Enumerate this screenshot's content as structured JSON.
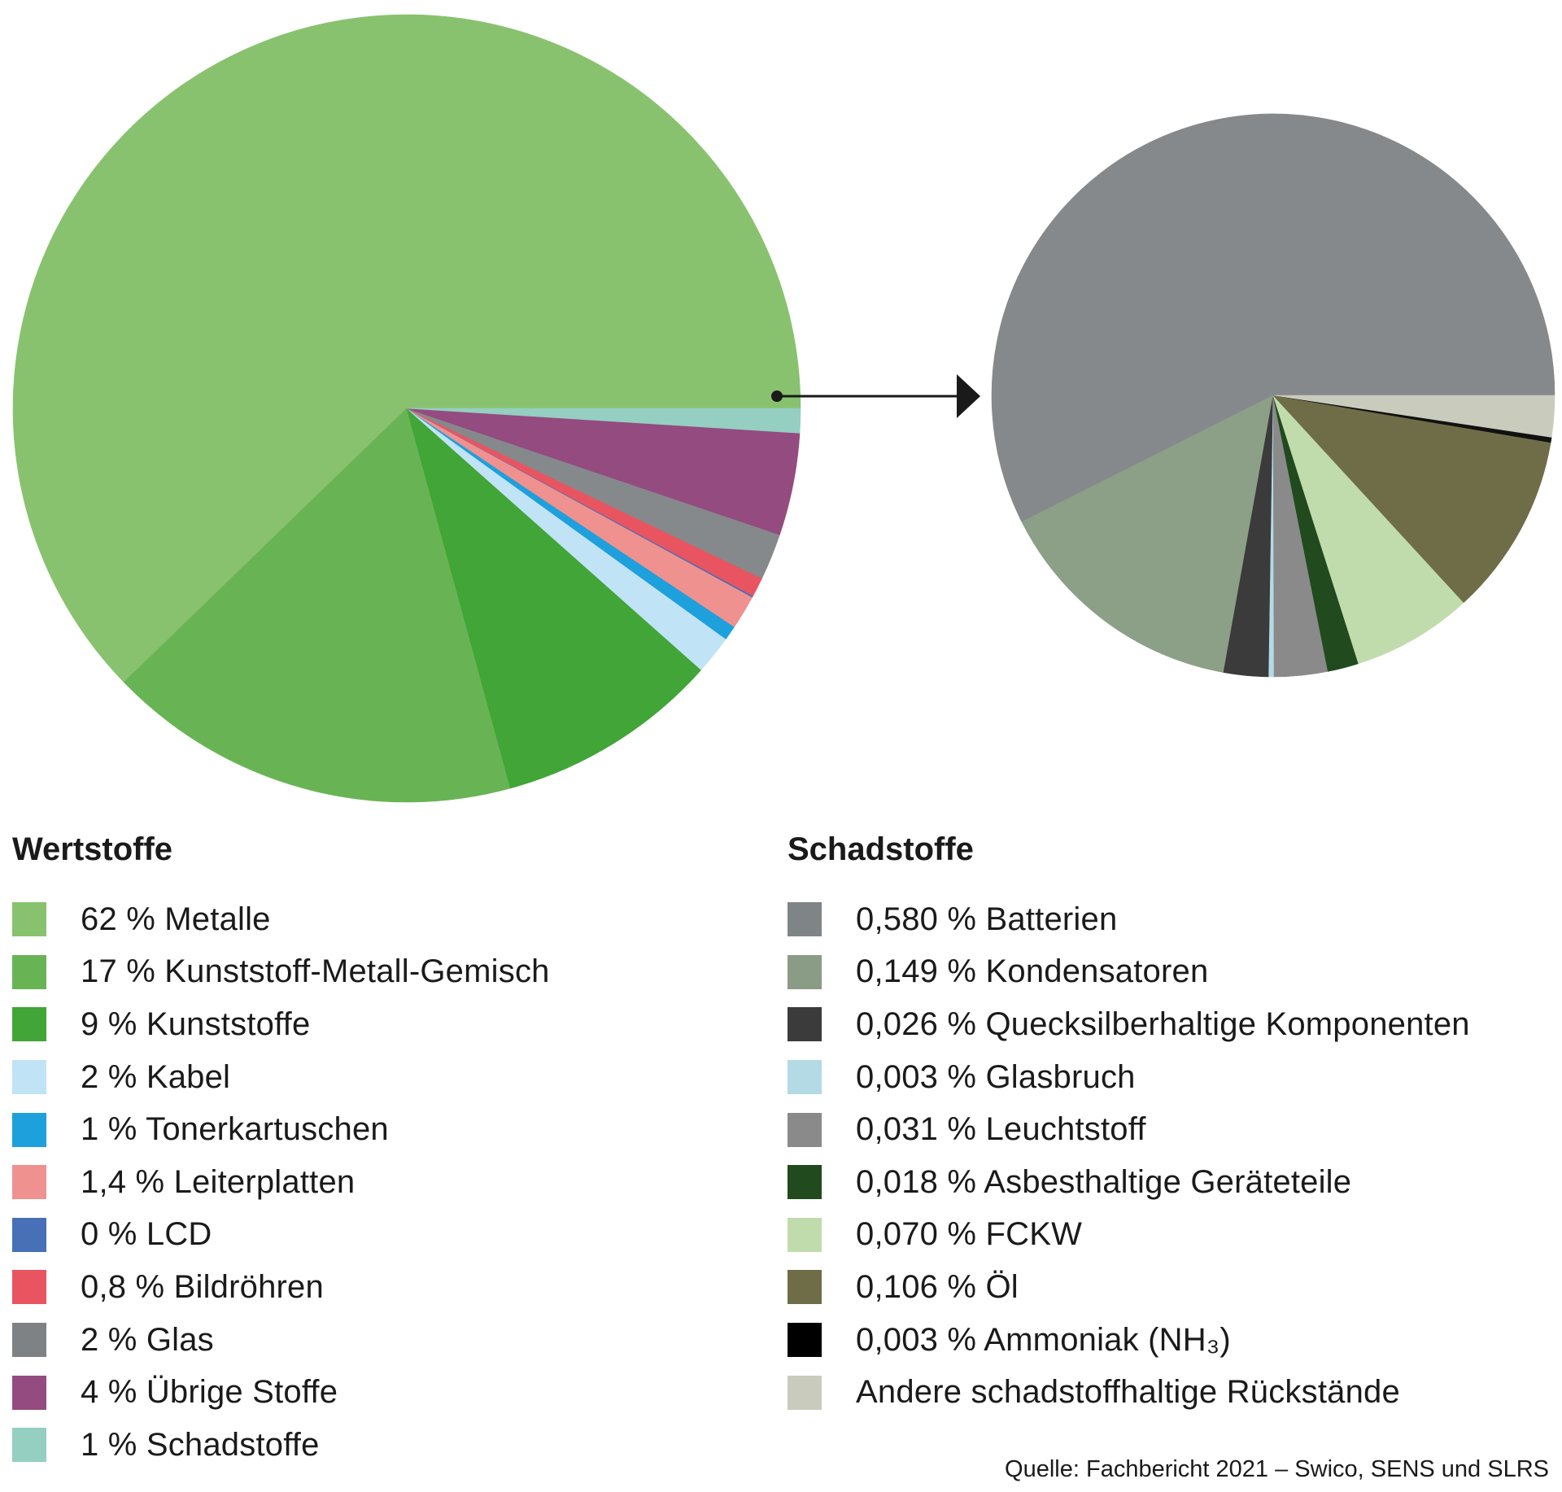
{
  "chart_data": [
    {
      "type": "pie",
      "title": "Wertstoffe",
      "series": [
        {
          "label": "62 % Metalle",
          "value": 62.24,
          "color": "#88c26e"
        },
        {
          "label": "17 % Kunststoff-Metall-Gemisch",
          "value": 17.0,
          "color": "#68b455"
        },
        {
          "label": "9 % Kunststoffe",
          "value": 9.2,
          "color": "#41a537"
        },
        {
          "label": "2 % Kabel",
          "value": 1.6,
          "color": "#c1e3f6"
        },
        {
          "label": "1 % Tonerkartuschen",
          "value": 0.6,
          "color": "#1ea0dc"
        },
        {
          "label": "1,4 % Leiterplatten",
          "value": 1.4,
          "color": "#ef918f"
        },
        {
          "label": "0 % LCD",
          "value": 0.06,
          "color": "#4770b6"
        },
        {
          "label": "0,8 % Bildröhren",
          "value": 0.8,
          "color": "#e85561"
        },
        {
          "label": "2 % Glas",
          "value": 1.9,
          "color": "#86898b"
        },
        {
          "label": "4 % Übrige Stoffe",
          "value": 4.2,
          "color": "#944b80"
        },
        {
          "label": "1 % Schadstoffe",
          "value": 1.0,
          "color": "#94cfc1"
        }
      ]
    },
    {
      "type": "pie",
      "title": "Schadstoffe",
      "series": [
        {
          "label": "0,580 % Batterien",
          "value": 0.58,
          "color": "#86898b"
        },
        {
          "label": "0,149 % Kondensatoren",
          "value": 0.149,
          "color": "#8c9f87"
        },
        {
          "label": "0,026 % Quecksilberhaltige Komponenten",
          "value": 0.026,
          "color": "#3b3b3b"
        },
        {
          "label": "0,003 % Glasbruch",
          "value": 0.003,
          "color": "#b3dae5"
        },
        {
          "label": "0,031 % Leuchtstoff",
          "value": 0.031,
          "color": "#8a8a8a"
        },
        {
          "label": "0,018 % Asbesthaltige Geräteteile",
          "value": 0.018,
          "color": "#224a1f"
        },
        {
          "label": "0,070 % FCKW",
          "value": 0.07,
          "color": "#c1dcac"
        },
        {
          "label": "0,106 % Öl",
          "value": 0.106,
          "color": "#6f6c48"
        },
        {
          "label": "0,003 % Ammoniak (NH3)",
          "value": 0.003,
          "color": "#111111"
        },
        {
          "label": "Andere schadstoffhaltige Rückstände",
          "value": 0.024,
          "color": "#c9cbbd"
        }
      ]
    }
  ],
  "legend_left": {
    "title": "Wertstoffe",
    "items": [
      {
        "label": "62 % Metalle",
        "color": "#88c26e"
      },
      {
        "label": "17 % Kunststoff-Metall-Gemisch",
        "color": "#68b455"
      },
      {
        "label": "9 % Kunststoffe",
        "color": "#41a537"
      },
      {
        "label": "2 % Kabel",
        "color": "#c1e3f6"
      },
      {
        "label": "1 % Tonerkartuschen",
        "color": "#1ea0dc"
      },
      {
        "label": "1,4 % Leiterplatten",
        "color": "#ef918f"
      },
      {
        "label": "0 % LCD",
        "color": "#4770b6"
      },
      {
        "label": "0,8 % Bildröhren",
        "color": "#e85561"
      },
      {
        "label": "2 % Glas",
        "color": "#7e8285"
      },
      {
        "label": "4 % Übrige Stoffe",
        "color": "#944b80"
      },
      {
        "label": "1 % Schadstoffe",
        "color": "#94cfc1"
      }
    ]
  },
  "legend_right": {
    "title": "Schadstoffe",
    "items": [
      {
        "label": "0,580 % Batterien",
        "color": "#7f8486"
      },
      {
        "label": "0,149 % Kondensatoren",
        "color": "#8a9b86"
      },
      {
        "label": "0,026 % Quecksilberhaltige Komponenten",
        "color": "#3b3b3b"
      },
      {
        "label": "0,003 % Glasbruch",
        "color": "#b3dae5"
      },
      {
        "label": "0,031 % Leuchtstoff",
        "color": "#8a8a8a"
      },
      {
        "label": "0,018 % Asbesthaltige Geräteteile",
        "color": "#224a1f"
      },
      {
        "label": "0,070 % FCKW",
        "color": "#c1dcac"
      },
      {
        "label": "0,106 % Öl",
        "color": "#6f6c48"
      },
      {
        "label": "0,003 % Ammoniak (NH₃)",
        "color": "#000000"
      },
      {
        "label": "Andere schadstoffhaltige Rückstände",
        "color": "#c9cbbd"
      }
    ]
  },
  "source": "Quelle: Fachbericht  2021 – Swico, SENS und SLRS"
}
